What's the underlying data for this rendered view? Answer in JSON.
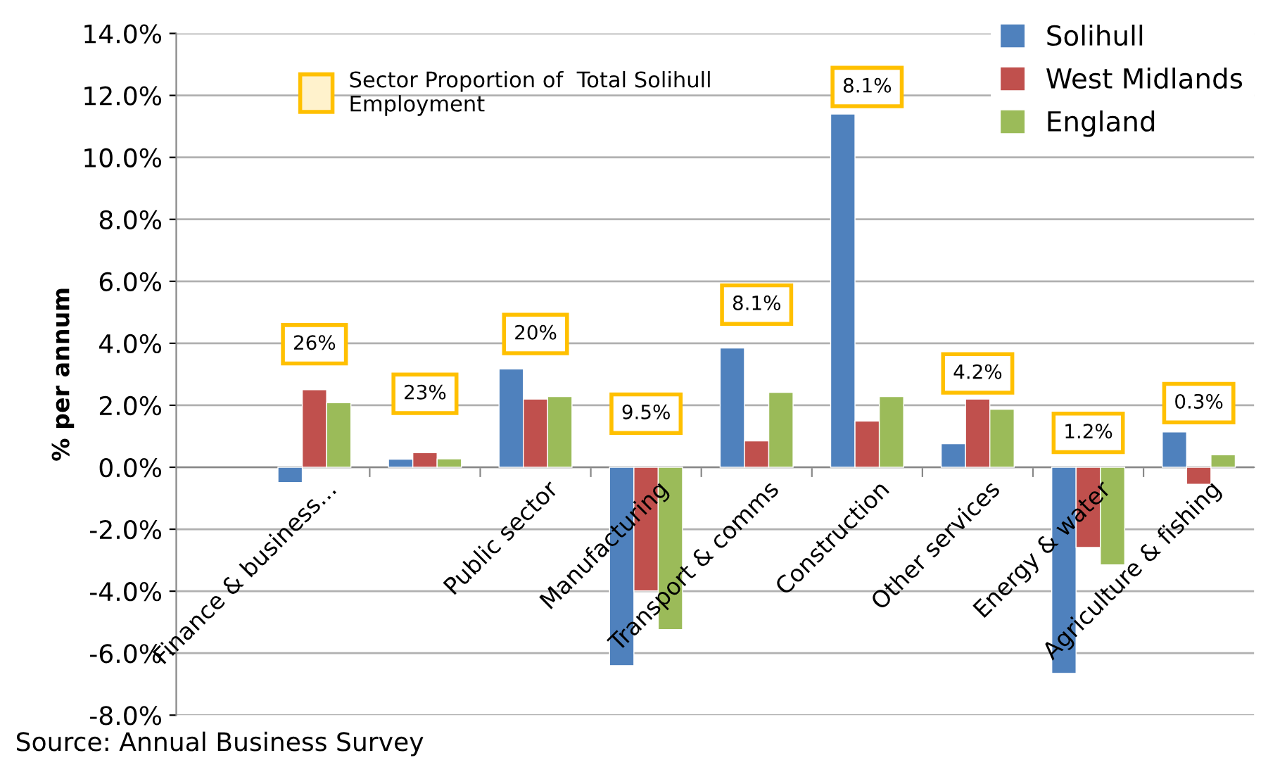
{
  "chart_data": {
    "type": "bar",
    "ylabel": "% per annum",
    "categories": [
      "Finance & business...",
      null,
      "Public sector",
      "Manufacturing",
      "Transport & comms",
      "Construction",
      "Other services",
      "Energy & water",
      "Agriculture & fishing"
    ],
    "series": [
      {
        "name": "Solihull",
        "color": "#4f81bd",
        "values": [
          -0.49,
          0.26,
          3.17,
          -6.4,
          3.85,
          11.4,
          0.76,
          -6.65,
          1.14
        ]
      },
      {
        "name": "West Midlands",
        "color": "#c0504d",
        "values": [
          2.5,
          0.47,
          2.2,
          -3.99,
          0.85,
          1.49,
          2.2,
          -2.59,
          -0.55
        ]
      },
      {
        "name": "England",
        "color": "#9bbb59",
        "values": [
          2.08,
          0.27,
          2.28,
          -5.24,
          2.42,
          2.28,
          1.87,
          -3.15,
          0.4
        ]
      }
    ],
    "ylim": [
      -8,
      14
    ],
    "yticks": [
      {
        "value": -8,
        "label": "-8.0%"
      },
      {
        "value": -6,
        "label": "-6.0%"
      },
      {
        "value": -4,
        "label": "-4.0%"
      },
      {
        "value": -2,
        "label": "-2.0%"
      },
      {
        "value": 0,
        "label": "0.0%"
      },
      {
        "value": 2,
        "label": "2.0%"
      },
      {
        "value": 4,
        "label": "4.0%"
      },
      {
        "value": 6,
        "label": "6.0%"
      },
      {
        "value": 8,
        "label": "8.0%"
      },
      {
        "value": 10,
        "label": "10.0%"
      },
      {
        "value": 12,
        "label": "12.0%"
      },
      {
        "value": 14,
        "label": "14.0%"
      }
    ],
    "grid": "y",
    "legend": "top right",
    "annotations": [
      "26%",
      "23%",
      "20%",
      "9.5%",
      "8.1%",
      "8.1%",
      "4.2%",
      "1.2%",
      "0.3%",
      "Sector Proportion of  Total Solihull Employment",
      "Source: Annual Business Survey"
    ]
  }
}
